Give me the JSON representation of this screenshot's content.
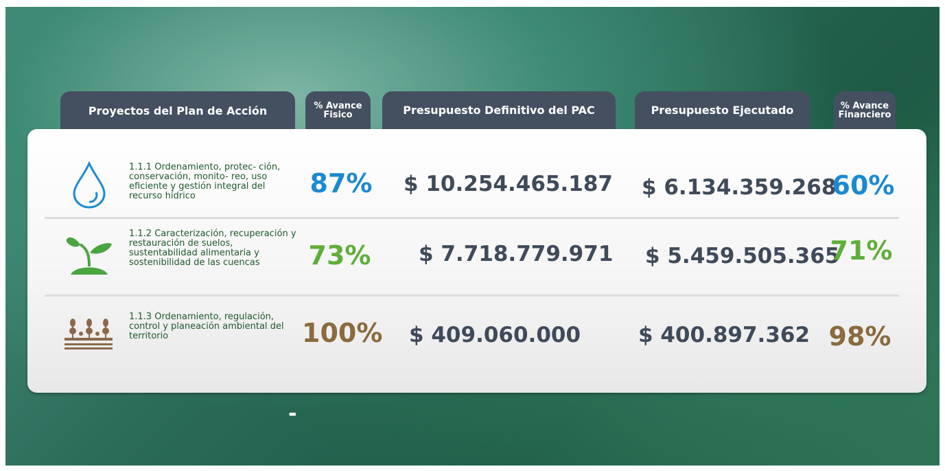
{
  "headers": [
    "Proyectos del Plan de Acción",
    "% Avance Fisico",
    "Presupuesto Definitivo del PAC",
    "Presupuesto Ejecutado",
    "% Avance Financiero"
  ],
  "rows": [
    {
      "label": "1.1.1 Ordenamiento, protec- ción, conservación, monito- reo, uso eficiente y gestión integral del recurso hídrico",
      "avance_fisico": "87%",
      "presupuesto": "$ 10.254.465.187",
      "ejecutado": "$ 6.134.359.268",
      "avance_financiero": "60%"
    },
    {
      "label": "1.1.2 Caracterización, recuperación y restauración de suelos, sustentabilidad alimentaria y sostenibilidad de las cuencas",
      "avance_fisico": "73%",
      "presupuesto": "$ 7.718.779.971",
      "ejecutado": "$ 5.459.505.365",
      "avance_financiero": "71%"
    },
    {
      "label": "1.1.3 Ordenamiento, regulación, control y planeación ambiental del territorio",
      "avance_fisico": "100%",
      "presupuesto": "$ 409.060.000",
      "ejecutado": "$ 400.897.362",
      "avance_financiero": "98%"
    }
  ],
  "footer_mark": "-"
}
